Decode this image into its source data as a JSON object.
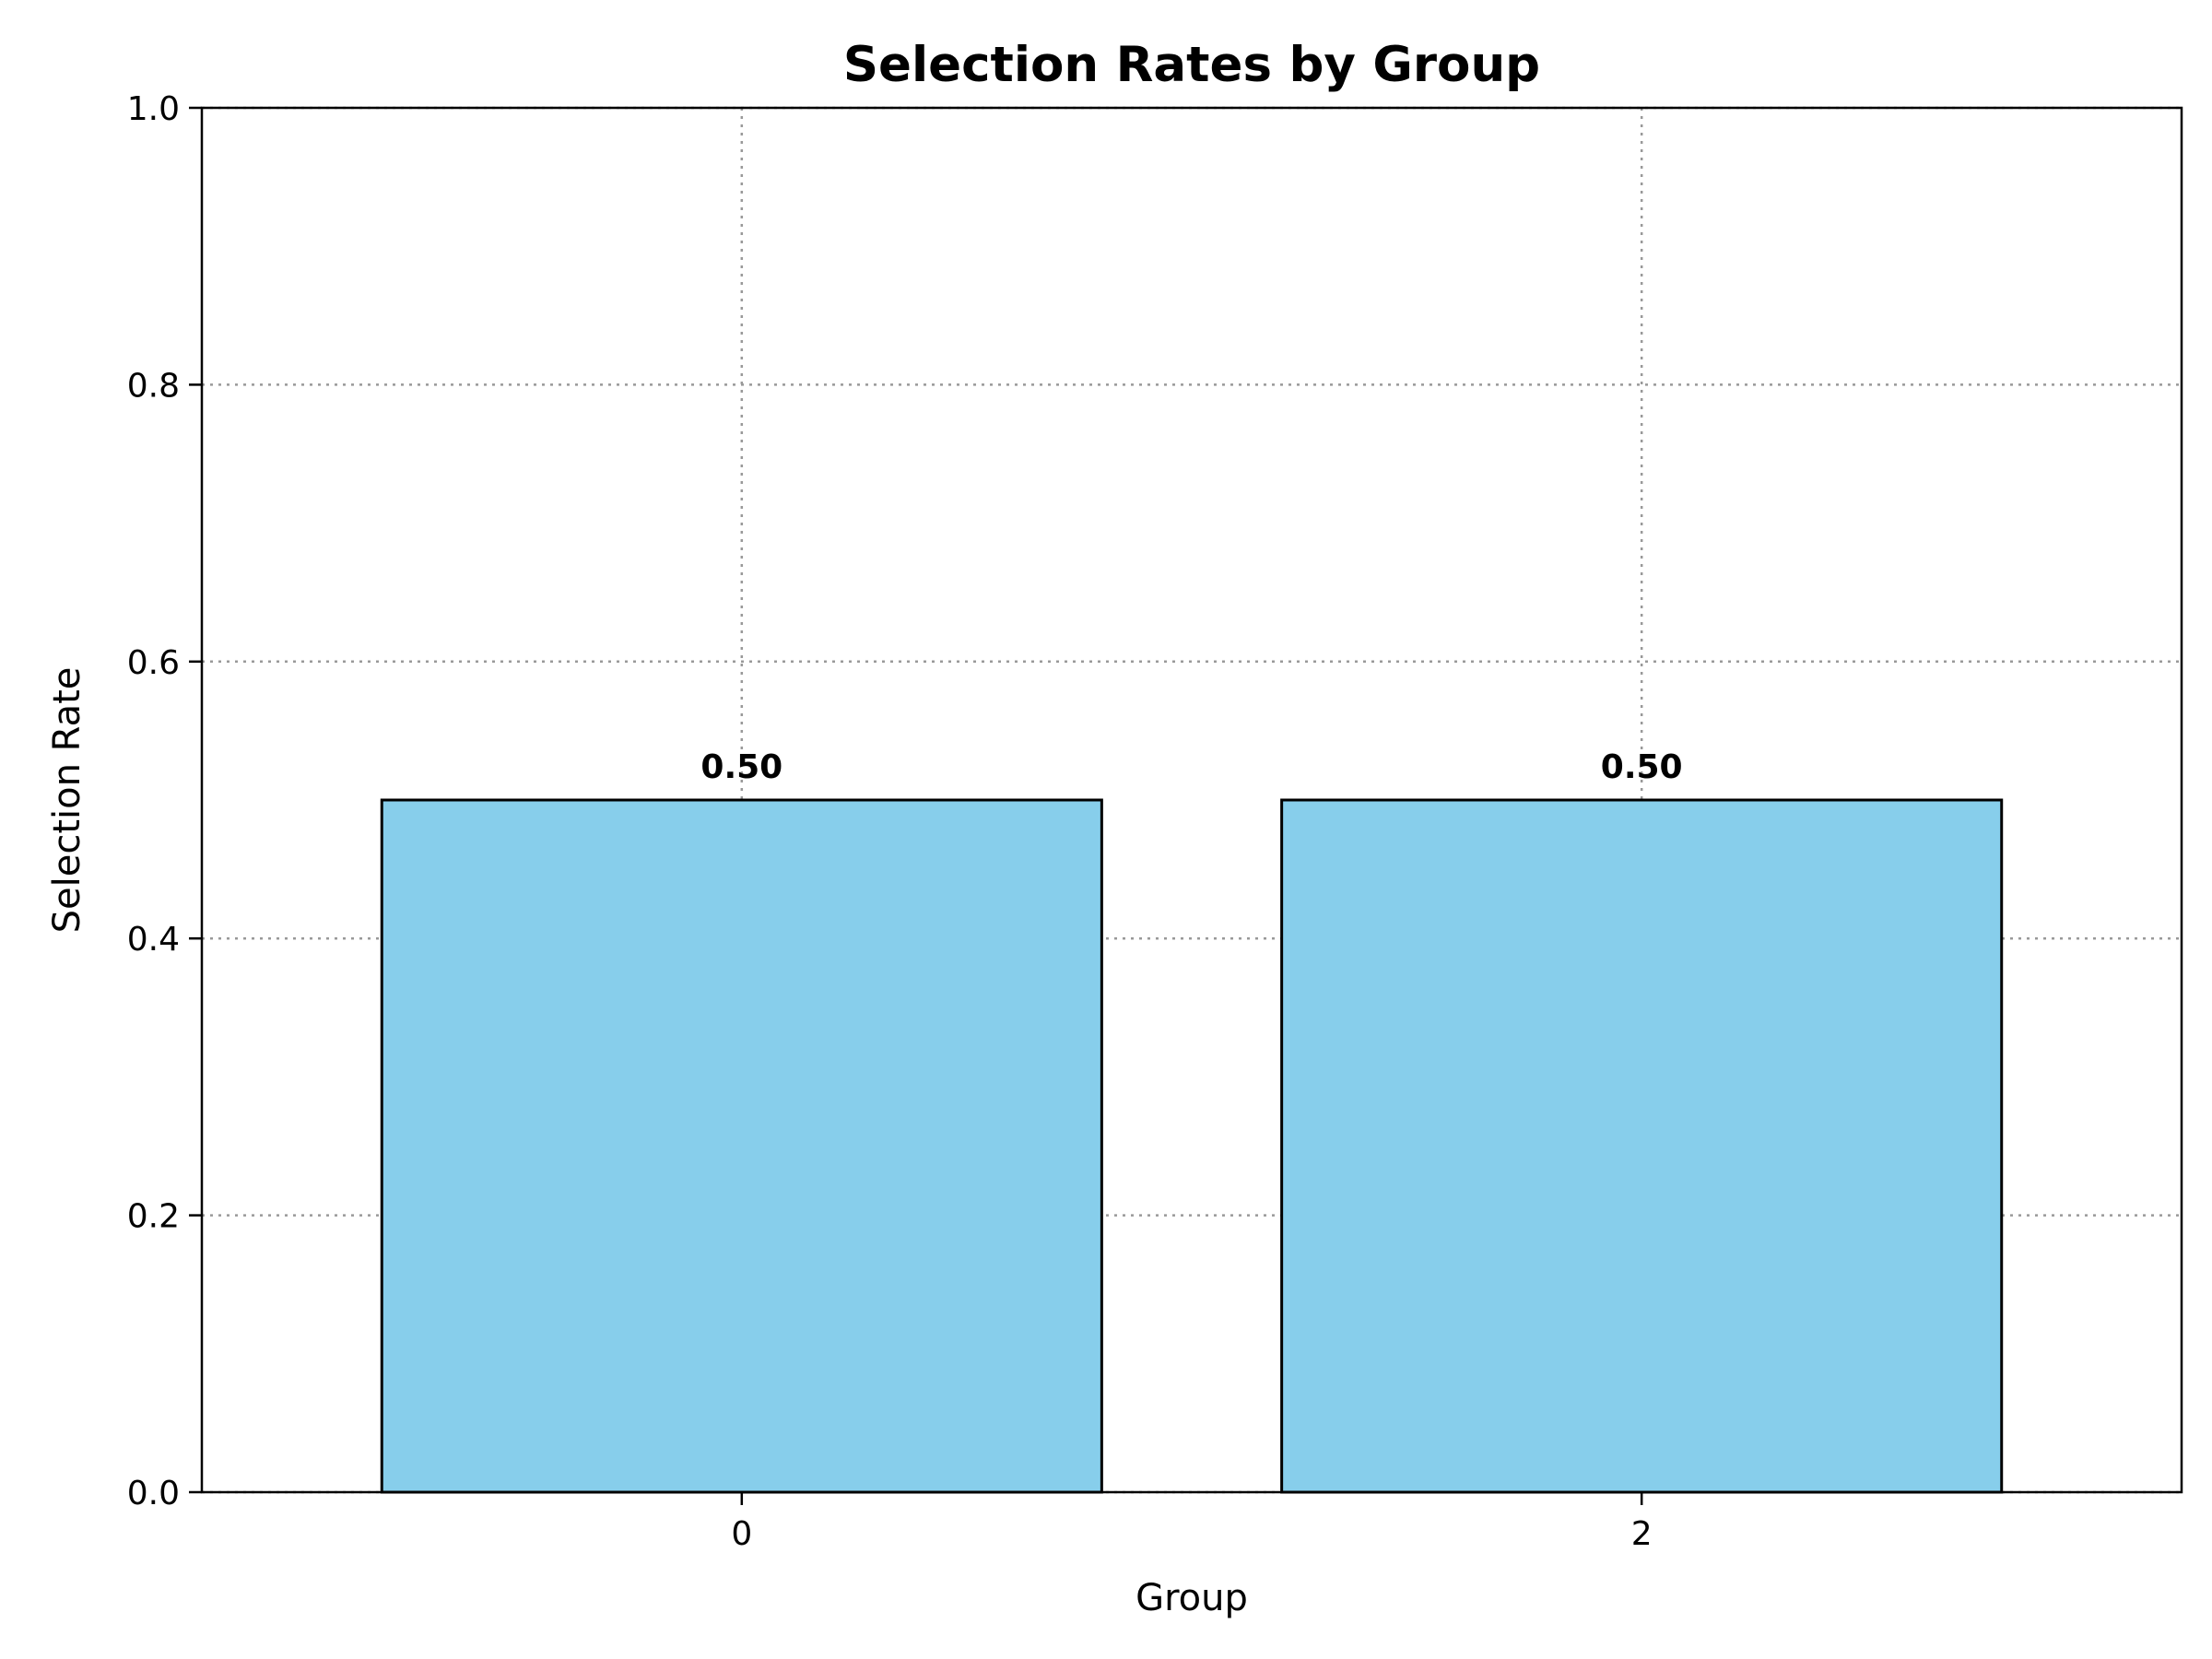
{
  "chart_data": {
    "type": "bar",
    "title": "Selection Rates by Group",
    "xlabel": "Group",
    "ylabel": "Selection Rate",
    "categories": [
      "0",
      "2"
    ],
    "values": [
      0.5,
      0.5
    ],
    "data_labels": [
      "0.50",
      "0.50"
    ],
    "ylim": [
      0,
      1
    ],
    "y_ticks": [
      0,
      0.2,
      0.4,
      0.6,
      0.8,
      1.0
    ],
    "y_tick_labels": [
      "0.0",
      "0.2",
      "0.4",
      "0.6",
      "0.8",
      "1.0"
    ],
    "grid": true,
    "legend": "none",
    "colors": {
      "bar_fill": "#87CEEB",
      "bar_edge": "#000000",
      "grid": "#999999"
    }
  }
}
